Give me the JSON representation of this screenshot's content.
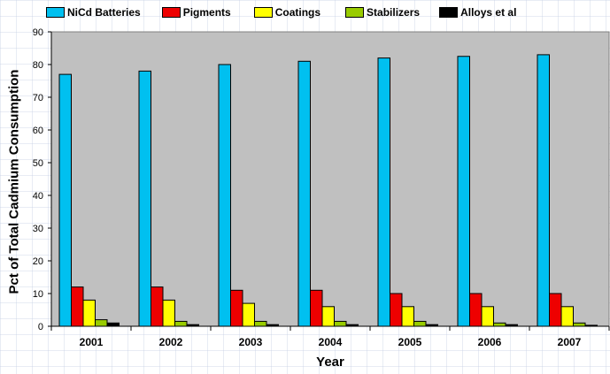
{
  "chart_data": {
    "type": "bar",
    "title": "",
    "xlabel": "Year",
    "ylabel": "Pct of Total Cadmium Consumption",
    "ylim": [
      0,
      90
    ],
    "yticks": [
      "0",
      "10",
      "20",
      "30",
      "40",
      "50",
      "60",
      "70",
      "80",
      "90"
    ],
    "categories": [
      "2001",
      "2002",
      "2003",
      "2004",
      "2005",
      "2006",
      "2007"
    ],
    "legend_position": "top",
    "grid": false,
    "series": [
      {
        "name": "NiCd Batteries",
        "color": "#00c0f0",
        "values": [
          77,
          78,
          80,
          81,
          82,
          82.5,
          83
        ]
      },
      {
        "name": "Pigments",
        "color": "#ee0000",
        "values": [
          12,
          12,
          11,
          11,
          10,
          10,
          10
        ]
      },
      {
        "name": "Coatings",
        "color": "#ffff00",
        "values": [
          8,
          8,
          7,
          6,
          6,
          6,
          6
        ]
      },
      {
        "name": "Stabilizers",
        "color": "#99cc00",
        "values": [
          2,
          1.5,
          1.5,
          1.5,
          1.5,
          1,
          1
        ]
      },
      {
        "name": "Alloys et al",
        "color": "#000000",
        "values": [
          1,
          0.5,
          0.5,
          0.5,
          0.5,
          0.5,
          0.3
        ]
      }
    ]
  }
}
